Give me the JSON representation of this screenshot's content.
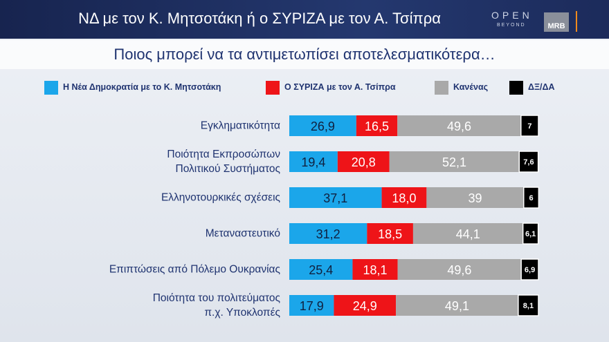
{
  "branding": {
    "channel": "OPEN",
    "tagline": "BEYOND",
    "pollster": "MRB"
  },
  "chart_data": {
    "type": "stacked-bar",
    "title": "ΝΔ με τον Κ. Μητσοτάκη ή ο ΣΥΡΙΖΑ με τον Α. Τσίπρα",
    "subtitle": "Ποιος μπορεί να τα αντιμετωπίσει αποτελεσματικότερα…",
    "categories": [
      "Εγκληματικότητα",
      "Ποιότητα Εκπροσώπων\nΠολιτικού Συστήματος",
      "Ελληνοτουρκικές σχέσεις",
      "Μεταναστευτικό",
      "Επιπτώσεις από Πόλεμο Ουκρανίας",
      "Ποιότητα του πολιτεύματος\nπ.χ. Υποκλοπές"
    ],
    "xlim": [
      0,
      100
    ],
    "series": [
      {
        "name": "Η Νέα Δημοκρατία με το Κ. Μητσοτάκη",
        "color": "#1ba6ea",
        "values": [
          26.9,
          19.4,
          37.1,
          31.2,
          25.4,
          17.9
        ],
        "value_labels": [
          "26,9",
          "19,4",
          "37,1",
          "31,2",
          "25,4",
          "17,9"
        ]
      },
      {
        "name": "Ο ΣΥΡΙΖΑ με τον Α. Τσίπρα",
        "color": "#ee1418",
        "values": [
          16.5,
          20.8,
          18.0,
          18.5,
          18.1,
          24.9
        ],
        "value_labels": [
          "16,5",
          "20,8",
          "18,0",
          "18,5",
          "18,1",
          "24,9"
        ]
      },
      {
        "name": "Κανένας",
        "color": "#a9a9a9",
        "values": [
          49.6,
          52.1,
          39,
          44.1,
          49.6,
          49.1
        ],
        "value_labels": [
          "49,6",
          "52,1",
          "39",
          "44,1",
          "49,6",
          "49,1"
        ]
      },
      {
        "name": "ΔΞ/ΔΑ",
        "color": "#000000",
        "values": [
          7,
          7.6,
          6,
          6.1,
          6.9,
          8.1
        ],
        "value_labels": [
          "7",
          "7,6",
          "6",
          "6,1",
          "6,9",
          "8,1"
        ]
      }
    ]
  }
}
